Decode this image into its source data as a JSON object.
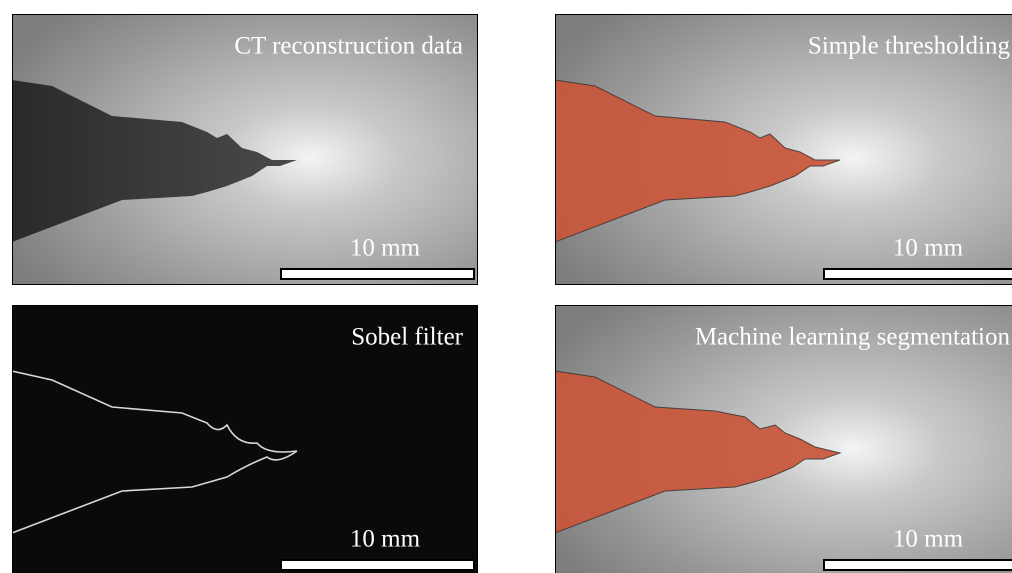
{
  "panels": [
    {
      "title": "CT reconstruction data",
      "scale_label": "10 mm"
    },
    {
      "title": "Simple thresholding",
      "scale_label": "10 mm"
    },
    {
      "title": "Sobel filter",
      "scale_label": "10 mm"
    },
    {
      "title": "Machine learning segmentation",
      "scale_label": "10 mm"
    }
  ]
}
